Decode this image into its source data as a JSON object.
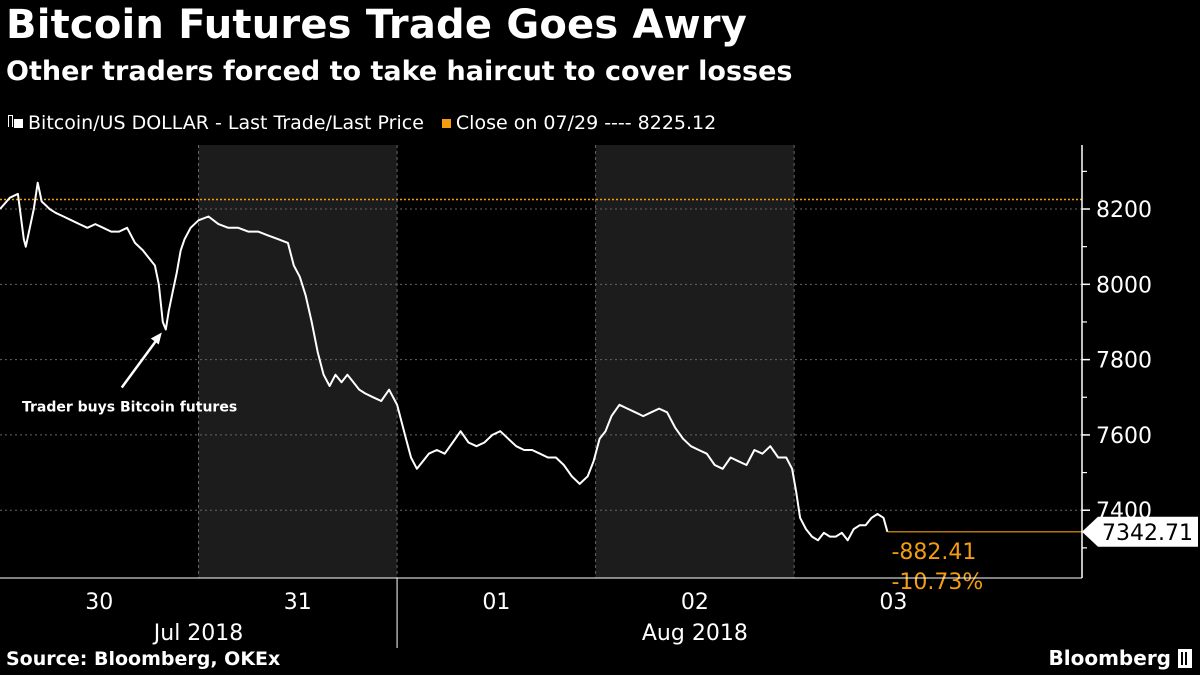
{
  "header": {
    "title": "Bitcoin Futures Trade Goes Awry",
    "subtitle": "Other traders forced to take haircut to cover losses"
  },
  "legend": {
    "series_label": "Bitcoin/US DOLLAR - Last Trade/Last Price",
    "close_label": "Close on 07/29 ---- 8225.12"
  },
  "colors": {
    "background": "#000000",
    "series": "#ffffff",
    "close_line": "#f39c12",
    "shade": "#1c1c1c",
    "change": "#f39c12"
  },
  "footer": {
    "source": "Source: Bloomberg, OKEx",
    "brand": "Bloomberg"
  },
  "chart_data": {
    "type": "line",
    "title": "Bitcoin Futures Trade Goes Awry",
    "ylim": [
      7220,
      8370
    ],
    "y_ticks": [
      7400,
      7600,
      7800,
      8000,
      8200
    ],
    "y_tick_labels": [
      "7400",
      "7600",
      "7800",
      "8000",
      "8200"
    ],
    "x_days": [
      "30",
      "31",
      "01",
      "02",
      "03"
    ],
    "x_months": [
      "Jul 2018",
      "Aug 2018"
    ],
    "x_domain_days": [
      -0.5,
      4.95
    ],
    "shaded_days": [
      [
        0.5,
        1.5
      ],
      [
        2.5,
        3.5
      ]
    ],
    "reference_line": {
      "label": "Close on 07/29",
      "value": 8225.12
    },
    "last_value": 7342.71,
    "last_value_label": "7342.71",
    "change_abs": "-882.41",
    "change_pct": "-10.73%",
    "annotation": {
      "text": "Trader buys Bitcoin futures",
      "points_to_day": 0.335,
      "points_to_value": 7880
    },
    "series": [
      {
        "name": "Bitcoin/US DOLLAR - Last Trade/Last Price",
        "x": [
          -0.5,
          -0.45,
          -0.41,
          -0.38,
          -0.37,
          -0.35,
          -0.33,
          -0.31,
          -0.29,
          -0.27,
          -0.25,
          -0.22,
          -0.18,
          -0.14,
          -0.1,
          -0.06,
          -0.02,
          0.02,
          0.06,
          0.1,
          0.14,
          0.18,
          0.22,
          0.25,
          0.28,
          0.3,
          0.32,
          0.335,
          0.35,
          0.37,
          0.39,
          0.41,
          0.43,
          0.46,
          0.5,
          0.55,
          0.6,
          0.65,
          0.7,
          0.75,
          0.8,
          0.85,
          0.9,
          0.95,
          0.98,
          1.01,
          1.04,
          1.07,
          1.1,
          1.13,
          1.16,
          1.19,
          1.22,
          1.25,
          1.28,
          1.31,
          1.34,
          1.38,
          1.42,
          1.46,
          1.5,
          1.53,
          1.55,
          1.57,
          1.6,
          1.63,
          1.66,
          1.7,
          1.74,
          1.78,
          1.82,
          1.86,
          1.9,
          1.94,
          1.98,
          2.02,
          2.06,
          2.1,
          2.14,
          2.18,
          2.22,
          2.26,
          2.3,
          2.34,
          2.38,
          2.42,
          2.46,
          2.49,
          2.52,
          2.55,
          2.58,
          2.62,
          2.66,
          2.7,
          2.74,
          2.78,
          2.82,
          2.86,
          2.9,
          2.94,
          2.98,
          3.02,
          3.06,
          3.1,
          3.14,
          3.18,
          3.22,
          3.26,
          3.3,
          3.34,
          3.38,
          3.42,
          3.46,
          3.49,
          3.51,
          3.53,
          3.56,
          3.59,
          3.62,
          3.65,
          3.68,
          3.71,
          3.74,
          3.77,
          3.8,
          3.83,
          3.86,
          3.89,
          3.92,
          3.95,
          3.97
        ],
        "values": [
          8200,
          8230,
          8240,
          8120,
          8100,
          8150,
          8200,
          8270,
          8220,
          8210,
          8200,
          8190,
          8180,
          8170,
          8160,
          8150,
          8160,
          8150,
          8140,
          8140,
          8150,
          8110,
          8090,
          8070,
          8050,
          8000,
          7900,
          7880,
          7930,
          7980,
          8030,
          8090,
          8120,
          8150,
          8170,
          8180,
          8160,
          8150,
          8150,
          8140,
          8140,
          8130,
          8120,
          8110,
          8050,
          8020,
          7970,
          7900,
          7820,
          7760,
          7730,
          7760,
          7740,
          7760,
          7740,
          7720,
          7710,
          7700,
          7690,
          7720,
          7680,
          7620,
          7580,
          7540,
          7510,
          7530,
          7550,
          7560,
          7550,
          7580,
          7610,
          7580,
          7570,
          7580,
          7600,
          7610,
          7590,
          7570,
          7560,
          7560,
          7550,
          7540,
          7540,
          7520,
          7490,
          7470,
          7490,
          7530,
          7590,
          7610,
          7650,
          7680,
          7670,
          7660,
          7650,
          7660,
          7670,
          7660,
          7620,
          7590,
          7570,
          7560,
          7550,
          7520,
          7510,
          7540,
          7530,
          7520,
          7560,
          7550,
          7570,
          7540,
          7540,
          7510,
          7450,
          7380,
          7350,
          7330,
          7320,
          7340,
          7330,
          7330,
          7340,
          7320,
          7350,
          7360,
          7360,
          7380,
          7390,
          7380,
          7342.71
        ]
      }
    ]
  }
}
